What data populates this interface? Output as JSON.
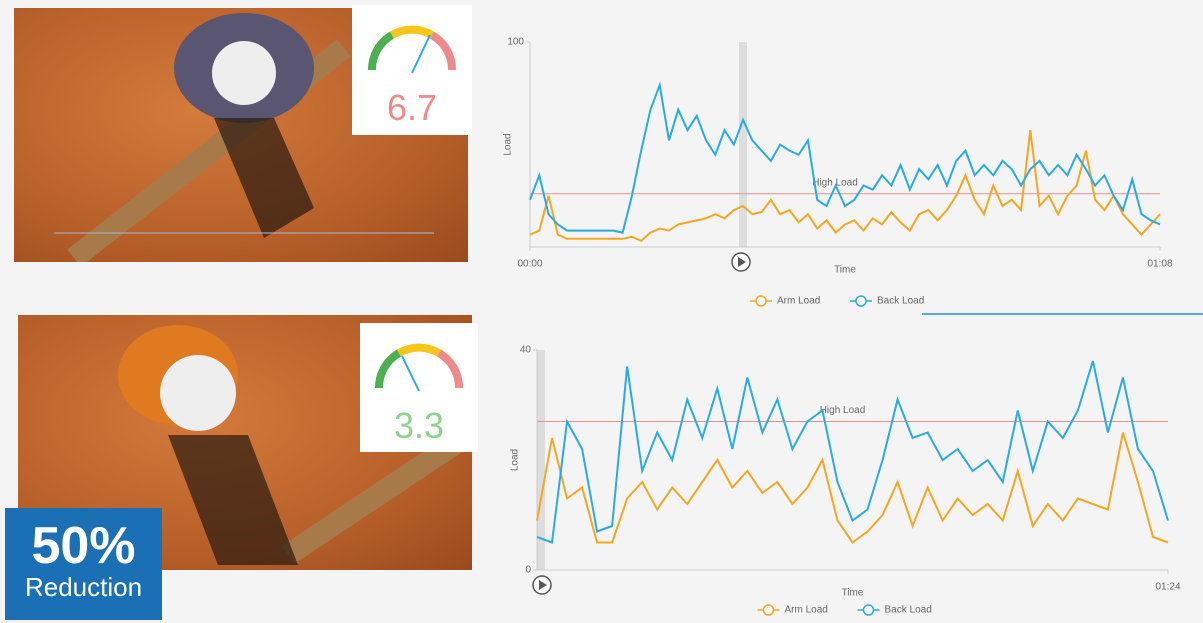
{
  "chart_data": [
    {
      "type": "line",
      "y_label": "Load",
      "x_label": "Time",
      "xlim": [
        0,
        68
      ],
      "ylim": [
        0,
        100
      ],
      "xticks": [
        {
          "value": 0,
          "label": "00:00"
        },
        {
          "value": 68,
          "label": "01:08"
        }
      ],
      "yticks": [
        100
      ],
      "annotation": {
        "text": "High Load",
        "value": 26
      },
      "x": [
        0,
        1,
        2,
        3,
        4,
        5,
        6,
        7,
        8,
        9,
        10,
        11,
        12,
        13,
        14,
        15,
        16,
        17,
        18,
        19,
        20,
        21,
        22,
        23,
        24,
        25,
        26,
        27,
        28,
        29,
        30,
        31,
        32,
        33,
        34,
        35,
        36,
        37,
        38,
        39,
        40,
        41,
        42,
        43,
        44,
        45,
        46,
        47,
        48,
        49,
        50,
        51,
        52,
        53,
        54,
        55,
        56,
        57,
        58,
        59,
        60,
        61,
        62,
        63,
        64,
        65,
        66,
        67,
        68
      ],
      "series": [
        {
          "name": "Arm Load",
          "color": "#f5a623",
          "values": [
            6,
            8,
            25,
            6,
            4,
            4,
            4,
            4,
            4,
            4,
            4,
            5,
            3,
            7,
            9,
            8,
            11,
            12,
            13,
            14,
            16,
            14,
            18,
            20,
            16,
            17,
            23,
            16,
            18,
            12,
            16,
            9,
            13,
            7,
            11,
            13,
            8,
            14,
            11,
            17,
            12,
            8,
            16,
            18,
            13,
            18,
            25,
            35,
            23,
            16,
            30,
            20,
            23,
            18,
            57,
            20,
            25,
            16,
            25,
            30,
            47,
            23,
            18,
            25,
            16,
            11,
            6,
            11,
            16
          ]
        },
        {
          "name": "Back Load",
          "color": "#29abe2",
          "values": [
            23,
            35,
            16,
            11,
            8,
            8,
            8,
            8,
            8,
            8,
            7,
            25,
            47,
            67,
            79,
            52,
            67,
            57,
            64,
            52,
            45,
            57,
            50,
            62,
            52,
            47,
            42,
            50,
            47,
            45,
            52,
            23,
            20,
            30,
            20,
            23,
            30,
            28,
            35,
            30,
            40,
            28,
            38,
            33,
            40,
            30,
            42,
            47,
            35,
            40,
            35,
            42,
            38,
            30,
            38,
            42,
            35,
            40,
            35,
            45,
            38,
            30,
            35,
            25,
            18,
            33,
            16,
            13,
            11
          ]
        }
      ]
    },
    {
      "type": "line",
      "y_label": "Load",
      "x_label": "Time",
      "xlim": [
        0,
        84
      ],
      "ylim": [
        0,
        40
      ],
      "xticks": [
        {
          "value": 84,
          "label": "01:24"
        }
      ],
      "yticks": [
        0,
        40
      ],
      "annotation": {
        "text": "High Load",
        "value": 27
      },
      "x": [
        0,
        2,
        4,
        6,
        8,
        10,
        12,
        14,
        16,
        18,
        20,
        22,
        24,
        26,
        28,
        30,
        32,
        34,
        36,
        38,
        40,
        42,
        44,
        46,
        48,
        50,
        52,
        54,
        56,
        58,
        60,
        62,
        64,
        66,
        68,
        70,
        72,
        74,
        76,
        78,
        80,
        82,
        84
      ],
      "series": [
        {
          "name": "Arm Load",
          "color": "#f5a623",
          "values": [
            9,
            24,
            13,
            15,
            5,
            5,
            13,
            16,
            11,
            15,
            12,
            16,
            20,
            15,
            18,
            14,
            16,
            12,
            15,
            20,
            9,
            5,
            7,
            10,
            16,
            8,
            15,
            9,
            13,
            10,
            12,
            9,
            18,
            8,
            12,
            9,
            13,
            12,
            11,
            25,
            16,
            6,
            5
          ]
        },
        {
          "name": "Back Load",
          "color": "#29abe2",
          "values": [
            6,
            5,
            27,
            22,
            7,
            8,
            37,
            18,
            25,
            20,
            31,
            24,
            33,
            22,
            35,
            25,
            31,
            22,
            27,
            29,
            16,
            9,
            11,
            20,
            31,
            24,
            25,
            20,
            22,
            18,
            20,
            16,
            29,
            18,
            27,
            24,
            29,
            38,
            25,
            35,
            22,
            18,
            9
          ]
        }
      ]
    }
  ],
  "gauges": [
    "6.7",
    "3.3"
  ],
  "badge": {
    "value": "50%",
    "label": "Reduction"
  }
}
